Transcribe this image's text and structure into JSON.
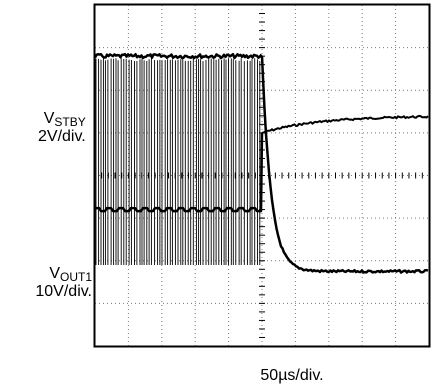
{
  "chart_data": {
    "type": "line",
    "divisions": {
      "x": 10,
      "y": 8
    },
    "grid": "dotted",
    "traces": [
      {
        "label_base": "V",
        "label_sub": "STBY",
        "scale": "2V/div.",
        "before_div": 3.2,
        "after_start_div": 5.0,
        "after_settle_div": 5.4,
        "step_at_div": 5.0
      },
      {
        "label_base": "V",
        "label_sub": "OUT1",
        "scale": "10V/div.",
        "switching_low_div": 1.9,
        "switching_high_div": 6.8,
        "after_settle_div": 1.75,
        "step_at_div": 5.0
      }
    ],
    "time_scale": "50µs/div."
  }
}
